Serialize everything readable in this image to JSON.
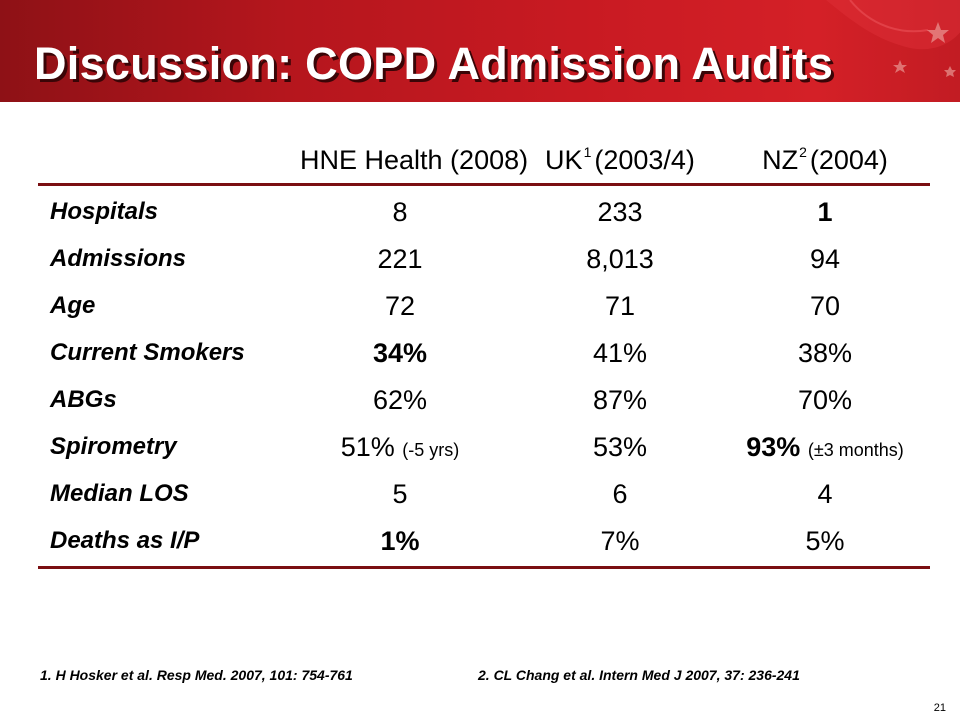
{
  "slide": {
    "title": "Discussion: COPD Admission Audits",
    "page_number": "21",
    "colors": {
      "banner": "#c81a22",
      "rule": "#7a0f12"
    }
  },
  "table": {
    "headers": [
      {
        "name": "HNE Health (2008)",
        "sup": ""
      },
      {
        "name": "UK",
        "sup": "1",
        "suffix": "(2003/4)"
      },
      {
        "name": "NZ",
        "sup": "2",
        "suffix": "(2004)"
      }
    ],
    "rows": [
      {
        "label": "Hospitals",
        "hne": "8",
        "uk": "233",
        "nz": "1"
      },
      {
        "label": "Admissions",
        "hne": "221",
        "uk": "8,013",
        "nz": "94"
      },
      {
        "label": "Age",
        "hne": "72",
        "uk": "71",
        "nz": "70"
      },
      {
        "label": "Current Smokers",
        "hne": "34%",
        "uk": "41%",
        "nz": "38%"
      },
      {
        "label": "ABGs",
        "hne": "62%",
        "uk": "87%",
        "nz": "70%"
      },
      {
        "label": "Spirometry",
        "hne": "51%",
        "hne_note": "(-5 yrs)",
        "uk": "53%",
        "nz": "93%",
        "nz_note": "(±3 months)"
      },
      {
        "label": "Median LOS",
        "hne": "5",
        "uk": "6",
        "nz": "4"
      },
      {
        "label": "Deaths as I/P",
        "hne": "1%",
        "uk": "7%",
        "nz": "5%"
      }
    ]
  },
  "footnotes": [
    "1. H Hosker et al. Resp Med. 2007, 101: 754-761",
    "2. CL Chang et al. Intern Med J 2007, 37: 236-241"
  ]
}
